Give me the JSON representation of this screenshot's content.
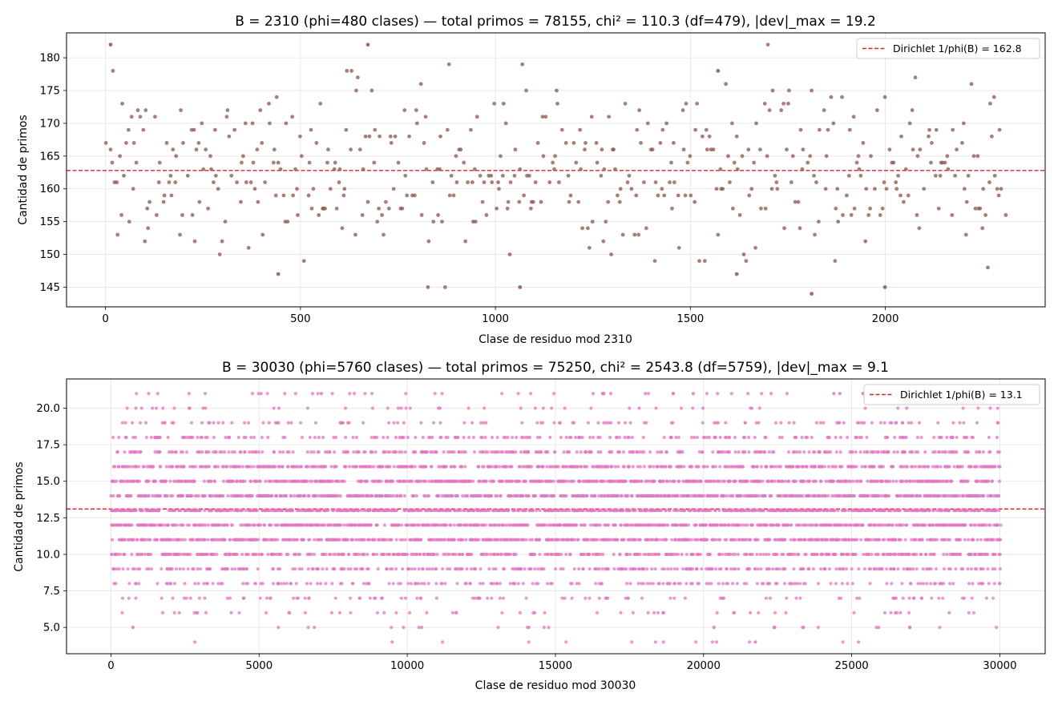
{
  "chart_data": [
    {
      "type": "scatter",
      "title": "B = 2310 (phi=480 clases) — total primos = 78155, chi² = 110.3 (df=479), |dev|_max = 19.2",
      "xlabel": "Clase de residuo mod 2310",
      "ylabel": "Cantidad de primos",
      "xlim": [
        -100,
        2410
      ],
      "ylim": [
        142,
        183.8
      ],
      "x_ticks": [
        0,
        500,
        1000,
        1500,
        2000
      ],
      "y_ticks": [
        145,
        150,
        155,
        160,
        165,
        170,
        175,
        180
      ],
      "y_tick_labels": [
        "145",
        "150",
        "155",
        "160",
        "165",
        "170",
        "175",
        "180"
      ],
      "grid": true,
      "legend_position": "top-right",
      "point_color": "#8c564b",
      "reference_color": "#d62728",
      "series": [
        {
          "name": "",
          "color": "#8c564b",
          "modulus": 2310,
          "count": 480,
          "mean": 162.8,
          "spread": 6.2,
          "min": 144,
          "max": 182,
          "seed": 2310,
          "highlights": [
            [
              13,
              182
            ],
            [
              673,
              182
            ],
            [
              1571,
              178
            ],
            [
              1811,
              144
            ],
            [
              1999,
              145
            ],
            [
              1063,
              145
            ],
            [
              1619,
              147
            ],
            [
              443,
              147
            ]
          ]
        }
      ],
      "reference_line": {
        "label": "Dirichlet 1/phi(B) = 162.8",
        "value": 162.8
      }
    },
    {
      "type": "scatter",
      "title": "B = 30030 (phi=5760 clases) — total primos = 75250, chi² = 2543.8 (df=5759), |dev|_max = 9.1",
      "xlabel": "Clase de residuo mod 30030",
      "ylabel": "Cantidad de primos",
      "xlim": [
        -1500,
        31530
      ],
      "ylim": [
        3.2,
        22.0
      ],
      "x_ticks": [
        0,
        5000,
        10000,
        15000,
        20000,
        25000,
        30000
      ],
      "y_ticks": [
        5.0,
        7.5,
        10.0,
        12.5,
        15.0,
        17.5,
        20.0
      ],
      "y_tick_labels": [
        "5.0",
        "7.5",
        "10.0",
        "12.5",
        "15.0",
        "17.5",
        "20.0"
      ],
      "grid": true,
      "legend_position": "top-right",
      "point_color": "#e377c2",
      "reference_color": "#d62728",
      "series": [
        {
          "name": "",
          "color": "#e377c2",
          "modulus": 30030,
          "count": 5760,
          "mean": 13.1,
          "spread": 3.05,
          "min": 4,
          "max": 21,
          "seed": 30030,
          "highlights": [
            [
              7100,
              21
            ],
            [
              19650,
              21
            ],
            [
              24400,
              21
            ],
            [
              24600,
              21
            ],
            [
              21750,
              4
            ],
            [
              740,
              5
            ],
            [
              20350,
              5
            ],
            [
              22400,
              5
            ]
          ]
        }
      ],
      "reference_line": {
        "label": "Dirichlet 1/phi(B) = 13.1",
        "value": 13.1
      }
    }
  ]
}
